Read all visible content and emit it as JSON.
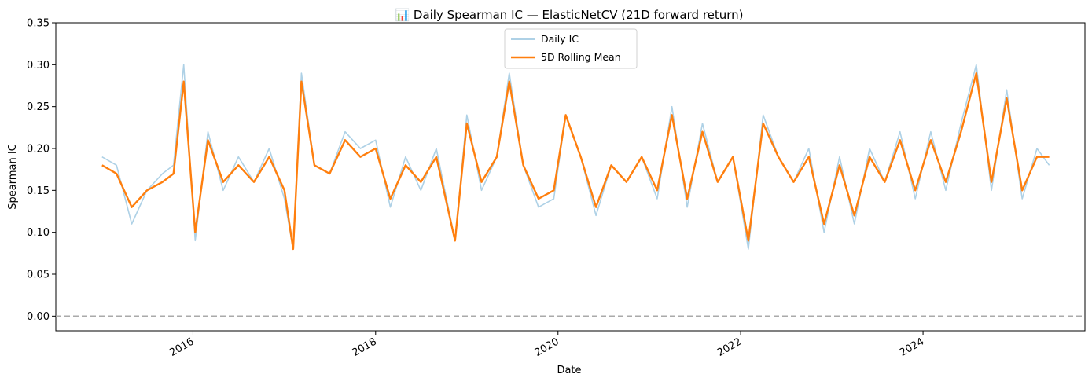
{
  "chart_data": {
    "type": "line",
    "title": "📊 Daily Spearman IC — ElasticNetCV (21D forward return)",
    "xlabel": "Date",
    "ylabel": "Spearman IC",
    "xlim": [
      "2014-07-01",
      "2025-10-10"
    ],
    "ylim": [
      -0.0175,
      0.35
    ],
    "y_ticks": [
      0.0,
      0.05,
      0.1,
      0.15,
      0.2,
      0.25,
      0.3,
      0.35
    ],
    "y_tick_labels": [
      "0.00",
      "0.05",
      "0.10",
      "0.15",
      "0.20",
      "0.25",
      "0.30",
      "0.35"
    ],
    "x_ticks": [
      "2016-01-01",
      "2018-01-01",
      "2020-01-01",
      "2022-01-01",
      "2024-01-01"
    ],
    "x_tick_labels": [
      "2016",
      "2018",
      "2020",
      "2022",
      "2024"
    ],
    "grid": false,
    "legend": {
      "position": "top-center"
    },
    "reference_line": {
      "y": 0.0,
      "style": "dashed",
      "color": "#aaaaaa"
    },
    "colors": {
      "daily": "#aed1e6",
      "rolling": "#ff7f0e"
    },
    "series": [
      {
        "name": "Daily IC",
        "style": "thin-line",
        "x": [
          "2015-01-02",
          "2015-03-01",
          "2015-05-01",
          "2015-07-01",
          "2015-09-01",
          "2015-10-15",
          "2015-11-25",
          "2016-01-10",
          "2016-03-01",
          "2016-05-01",
          "2016-07-01",
          "2016-09-01",
          "2016-11-01",
          "2017-01-01",
          "2017-02-05",
          "2017-03-10",
          "2017-05-01",
          "2017-07-01",
          "2017-09-01",
          "2017-11-01",
          "2018-01-01",
          "2018-03-01",
          "2018-05-01",
          "2018-07-01",
          "2018-09-01",
          "2018-11-15",
          "2019-01-01",
          "2019-03-01",
          "2019-05-01",
          "2019-06-20",
          "2019-08-15",
          "2019-10-15",
          "2019-12-15",
          "2020-02-01",
          "2020-04-01",
          "2020-06-01",
          "2020-08-01",
          "2020-10-01",
          "2020-12-01",
          "2021-02-01",
          "2021-04-01",
          "2021-06-01",
          "2021-08-01",
          "2021-10-01",
          "2021-12-01",
          "2022-02-01",
          "2022-04-01",
          "2022-06-01",
          "2022-08-01",
          "2022-10-01",
          "2022-12-01",
          "2023-02-01",
          "2023-04-01",
          "2023-06-01",
          "2023-08-01",
          "2023-10-01",
          "2023-12-01",
          "2024-02-01",
          "2024-04-01",
          "2024-06-01",
          "2024-08-01",
          "2024-10-01",
          "2024-12-01",
          "2025-02-01",
          "2025-04-01",
          "2025-05-20"
        ],
        "values": [
          0.19,
          0.18,
          0.11,
          0.15,
          0.17,
          0.18,
          0.3,
          0.09,
          0.22,
          0.15,
          0.19,
          0.16,
          0.2,
          0.14,
          0.08,
          0.29,
          0.18,
          0.17,
          0.22,
          0.2,
          0.21,
          0.13,
          0.19,
          0.15,
          0.2,
          0.09,
          0.24,
          0.15,
          0.19,
          0.29,
          0.18,
          0.13,
          0.14,
          0.24,
          0.19,
          0.12,
          0.18,
          0.16,
          0.19,
          0.14,
          0.25,
          0.13,
          0.23,
          0.16,
          0.19,
          0.08,
          0.24,
          0.19,
          0.16,
          0.2,
          0.1,
          0.19,
          0.11,
          0.2,
          0.16,
          0.22,
          0.14,
          0.22,
          0.15,
          0.23,
          0.3,
          0.15,
          0.27,
          0.14,
          0.2,
          0.18
        ]
      },
      {
        "name": "5D Rolling Mean",
        "style": "thick-line",
        "x": [
          "2015-01-02",
          "2015-03-01",
          "2015-05-01",
          "2015-07-01",
          "2015-09-01",
          "2015-10-15",
          "2015-11-25",
          "2016-01-10",
          "2016-03-01",
          "2016-05-01",
          "2016-07-01",
          "2016-09-01",
          "2016-11-01",
          "2017-01-01",
          "2017-02-05",
          "2017-03-10",
          "2017-05-01",
          "2017-07-01",
          "2017-09-01",
          "2017-11-01",
          "2018-01-01",
          "2018-03-01",
          "2018-05-01",
          "2018-07-01",
          "2018-09-01",
          "2018-11-15",
          "2019-01-01",
          "2019-03-01",
          "2019-05-01",
          "2019-06-20",
          "2019-08-15",
          "2019-10-15",
          "2019-12-15",
          "2020-02-01",
          "2020-04-01",
          "2020-06-01",
          "2020-08-01",
          "2020-10-01",
          "2020-12-01",
          "2021-02-01",
          "2021-04-01",
          "2021-06-01",
          "2021-08-01",
          "2021-10-01",
          "2021-12-01",
          "2022-02-01",
          "2022-04-01",
          "2022-06-01",
          "2022-08-01",
          "2022-10-01",
          "2022-12-01",
          "2023-02-01",
          "2023-04-01",
          "2023-06-01",
          "2023-08-01",
          "2023-10-01",
          "2023-12-01",
          "2024-02-01",
          "2024-04-01",
          "2024-06-01",
          "2024-08-01",
          "2024-10-01",
          "2024-12-01",
          "2025-02-01",
          "2025-04-01",
          "2025-05-20"
        ],
        "values": [
          0.18,
          0.17,
          0.13,
          0.15,
          0.16,
          0.17,
          0.28,
          0.1,
          0.21,
          0.16,
          0.18,
          0.16,
          0.19,
          0.15,
          0.08,
          0.28,
          0.18,
          0.17,
          0.21,
          0.19,
          0.2,
          0.14,
          0.18,
          0.16,
          0.19,
          0.09,
          0.23,
          0.16,
          0.19,
          0.28,
          0.18,
          0.14,
          0.15,
          0.24,
          0.19,
          0.13,
          0.18,
          0.16,
          0.19,
          0.15,
          0.24,
          0.14,
          0.22,
          0.16,
          0.19,
          0.09,
          0.23,
          0.19,
          0.16,
          0.19,
          0.11,
          0.18,
          0.12,
          0.19,
          0.16,
          0.21,
          0.15,
          0.21,
          0.16,
          0.22,
          0.29,
          0.16,
          0.26,
          0.15,
          0.19,
          0.19
        ]
      }
    ]
  }
}
